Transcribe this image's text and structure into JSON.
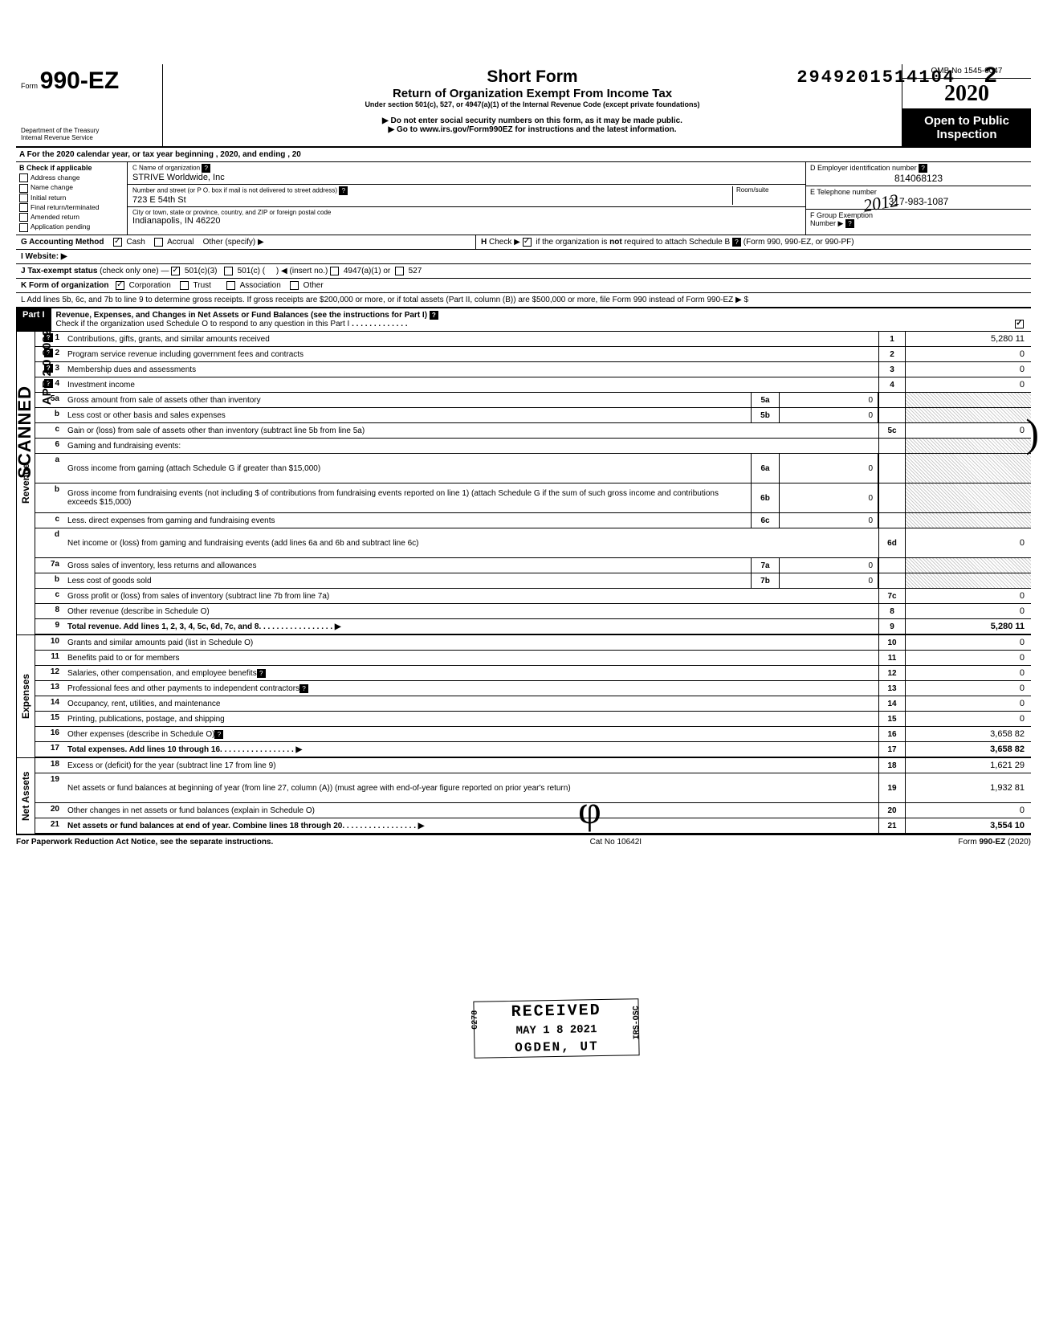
{
  "top_number": "2949201514104",
  "top_number_suffix": "2",
  "form": {
    "label": "Form",
    "number": "990-EZ",
    "dept1": "Department of the Treasury",
    "dept2": "Internal Revenue Service"
  },
  "title": {
    "main": "Short Form",
    "sub": "Return of Organization Exempt From Income Tax",
    "line3": "Under section 501(c), 527, or 4947(a)(1) of the Internal Revenue Code (except private foundations)",
    "line4": "▶ Do not enter social security numbers on this form, as it may be made public.",
    "line5": "▶ Go to www.irs.gov/Form990EZ for instructions and the latest information."
  },
  "omb": {
    "no": "OMB No 1545-0047",
    "year": "2020",
    "open": "Open to Public Inspection"
  },
  "hand_year": "2012",
  "row_a": "A  For the 2020 calendar year, or tax year beginning                                                        , 2020, and ending                                          , 20",
  "col_b": {
    "header": "B  Check if applicable",
    "items": [
      "Address change",
      "Name change",
      "Initial return",
      "Final return/terminated",
      "Amended return",
      "Application pending"
    ]
  },
  "col_c": {
    "name_label": "C  Name of organization",
    "name": "STRIVE Worldwide, Inc",
    "street_label": "Number and street (or P O. box if mail is not delivered to street address)",
    "room_label": "Room/suite",
    "street": "723 E 54th St",
    "city_label": "City or town, state or province, country, and ZIP or foreign postal code",
    "city": "Indianapolis, IN 46220"
  },
  "col_right": {
    "d_label": "D Employer identification number",
    "d_val": "814068123",
    "e_label": "E Telephone number",
    "e_val": "317-983-1087",
    "f_label": "F Group Exemption",
    "f_label2": "Number ▶"
  },
  "row_g": "G  Accounting Method",
  "g_cash": "Cash",
  "g_accrual": "Accrual",
  "g_other": "Other (specify) ▶",
  "row_h": "H  Check ▶     if the organization is not required to attach Schedule B (Form 990, 990-EZ, or 990-PF)",
  "row_i": "I   Website: ▶",
  "row_j": "J  Tax-exempt status (check only one) —      501(c)(3)       501(c) (         ) ◀ (insert no.)      4947(a)(1) or       527",
  "row_k": "K  Form of organization        Corporation         Trust              Association         Other",
  "row_l": "L  Add lines 5b, 6c, and 7b to line 9 to determine gross receipts. If gross receipts are $200,000 or more, or if total assets (Part II, column (B)) are $500,000 or more, file Form 990 instead of Form 990-EZ                                                                                                                         ▶   $",
  "part1": {
    "label": "Part I",
    "title": "Revenue, Expenses, and Changes in Net Assets or Fund Balances (see the instructions for Part I)",
    "check": "Check if the organization used Schedule O to respond to any question in this Part I"
  },
  "side_scanned": "SCANNED",
  "side_date": "APR 2 0 2022",
  "side_labels": {
    "rev": "Revenue",
    "exp": "Expenses",
    "net": "Net Assets"
  },
  "stamp": {
    "top": "RECEIVED",
    "mid": "MAY 1 8 2021",
    "bot": "OGDEN, UT",
    "c278": "C278",
    "irs": "IRS-OSC"
  },
  "rows": [
    {
      "n": "1",
      "d": "Contributions, gifts, grants, and similar amounts received",
      "rn": "1",
      "rv": "5,280 11",
      "help": true
    },
    {
      "n": "2",
      "d": "Program service revenue including government fees and contracts",
      "rn": "2",
      "rv": "0",
      "help": true
    },
    {
      "n": "3",
      "d": "Membership dues and assessments",
      "rn": "3",
      "rv": "0",
      "help": true
    },
    {
      "n": "4",
      "d": "Investment income",
      "rn": "4",
      "rv": "0",
      "help": true
    },
    {
      "n": "5a",
      "d": "Gross amount from sale of assets other than inventory",
      "mn": "5a",
      "mv": "0",
      "sh": true
    },
    {
      "n": "b",
      "d": "Less cost or other basis and sales expenses",
      "mn": "5b",
      "mv": "0",
      "sh": true
    },
    {
      "n": "c",
      "d": "Gain or (loss) from sale of assets other than inventory (subtract line 5b from line 5a)",
      "rn": "5c",
      "rv": "0"
    },
    {
      "n": "6",
      "d": "Gaming and fundraising events:",
      "sh": true,
      "noline": true
    },
    {
      "n": "a",
      "d": "Gross income from gaming (attach Schedule G if greater than $15,000)",
      "mn": "6a",
      "mv": "0",
      "sh": true,
      "tall": true
    },
    {
      "n": "b",
      "d": "Gross income from fundraising events (not including  $                         of contributions from fundraising events reported on line 1) (attach Schedule G if the sum of such gross income and contributions exceeds $15,000)",
      "mn": "6b",
      "mv": "0",
      "sh": true,
      "tall": true
    },
    {
      "n": "c",
      "d": "Less. direct expenses from gaming and fundraising events",
      "mn": "6c",
      "mv": "0",
      "sh": true
    },
    {
      "n": "d",
      "d": "Net income or (loss) from gaming and fundraising events (add lines 6a and 6b and subtract line 6c)",
      "rn": "6d",
      "rv": "0",
      "tall": true
    },
    {
      "n": "7a",
      "d": "Gross sales of inventory, less returns and allowances",
      "mn": "7a",
      "mv": "0",
      "sh": true
    },
    {
      "n": "b",
      "d": "Less cost of goods sold",
      "mn": "7b",
      "mv": "0",
      "sh": true
    },
    {
      "n": "c",
      "d": "Gross profit or (loss) from sales of inventory (subtract line 7b from line 7a)",
      "rn": "7c",
      "rv": "0"
    },
    {
      "n": "8",
      "d": "Other revenue (describe in Schedule O)",
      "rn": "8",
      "rv": "0"
    },
    {
      "n": "9",
      "d": "Total revenue. Add lines 1, 2, 3, 4, 5c, 6d, 7c, and 8",
      "rn": "9",
      "rv": "5,280 11",
      "bold": true,
      "arrow": true
    }
  ],
  "exp_rows": [
    {
      "n": "10",
      "d": "Grants and similar amounts paid (list in Schedule O)",
      "rn": "10",
      "rv": "0"
    },
    {
      "n": "11",
      "d": "Benefits paid to or for members",
      "rn": "11",
      "rv": "0"
    },
    {
      "n": "12",
      "d": "Salaries, other compensation, and employee benefits",
      "rn": "12",
      "rv": "0",
      "hi": true
    },
    {
      "n": "13",
      "d": "Professional fees and other payments to independent contractors",
      "rn": "13",
      "rv": "0",
      "hi": true
    },
    {
      "n": "14",
      "d": "Occupancy, rent, utilities, and maintenance",
      "rn": "14",
      "rv": "0"
    },
    {
      "n": "15",
      "d": "Printing, publications, postage, and shipping",
      "rn": "15",
      "rv": "0"
    },
    {
      "n": "16",
      "d": "Other expenses (describe in Schedule O)",
      "rn": "16",
      "rv": "3,658 82",
      "hi": true
    },
    {
      "n": "17",
      "d": "Total expenses. Add lines 10 through 16",
      "rn": "17",
      "rv": "3,658 82",
      "bold": true,
      "arrow": true
    }
  ],
  "net_rows": [
    {
      "n": "18",
      "d": "Excess or (deficit) for the year (subtract line 17 from line 9)",
      "rn": "18",
      "rv": "1,621 29"
    },
    {
      "n": "19",
      "d": "Net assets or fund balances at beginning of year (from line 27, column (A)) (must agree with end-of-year figure reported on prior year's return)",
      "rn": "19",
      "rv": "1,932 81",
      "tall": true,
      "sh_top": true
    },
    {
      "n": "20",
      "d": "Other changes in net assets or fund balances (explain in Schedule O)",
      "rn": "20",
      "rv": "0"
    },
    {
      "n": "21",
      "d": "Net assets or fund balances at end of year. Combine lines 18 through 20",
      "rn": "21",
      "rv": "3,554 10",
      "bold": true,
      "arrow": true
    }
  ],
  "footer": {
    "left": "For Paperwork Reduction Act Notice, see the separate instructions.",
    "mid": "Cat No 10642I",
    "right": "Form 990-EZ (2020)"
  }
}
